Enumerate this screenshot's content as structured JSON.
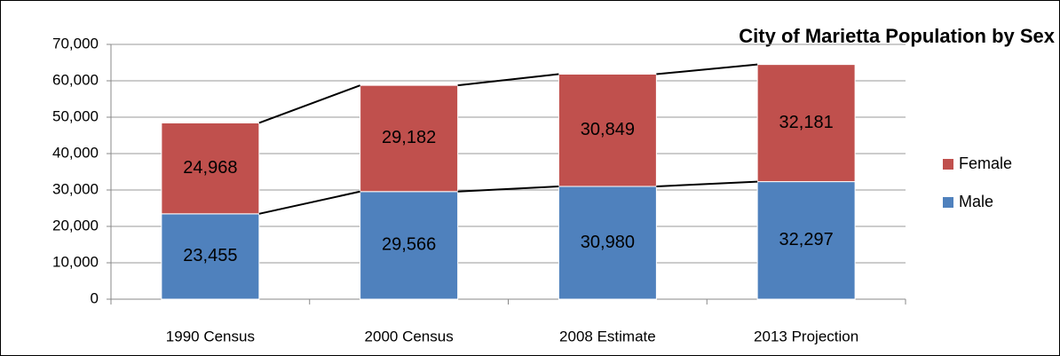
{
  "chart_data": {
    "type": "bar",
    "stacked": true,
    "title": "City of Marietta Population by Sex",
    "categories": [
      "1990 Census",
      "2000 Census",
      "2008 Estimate",
      "2013 Projection"
    ],
    "series": [
      {
        "name": "Male",
        "color": "#4f81bd",
        "values": [
          23455,
          29566,
          30980,
          32297
        ],
        "value_labels": [
          "23,455",
          "29,566",
          "30,980",
          "32,297"
        ]
      },
      {
        "name": "Female",
        "color": "#c0504d",
        "values": [
          24968,
          29182,
          30849,
          32181
        ],
        "value_labels": [
          "24,968",
          "29,182",
          "30,849",
          "32,181"
        ]
      }
    ],
    "ylim": [
      0,
      70000
    ],
    "yticks": [
      0,
      {
        "value": 10000,
        "label": "10,000"
      },
      {
        "value": 20000,
        "label": "20,000"
      },
      {
        "value": 30000,
        "label": "30,000"
      },
      {
        "value": 40000,
        "label": "40,000"
      },
      {
        "value": 50000,
        "label": "50,000"
      },
      {
        "value": 60000,
        "label": "60,000"
      },
      {
        "value": 70000,
        "label": "70,000"
      }
    ],
    "grid": true,
    "legend": "right"
  }
}
